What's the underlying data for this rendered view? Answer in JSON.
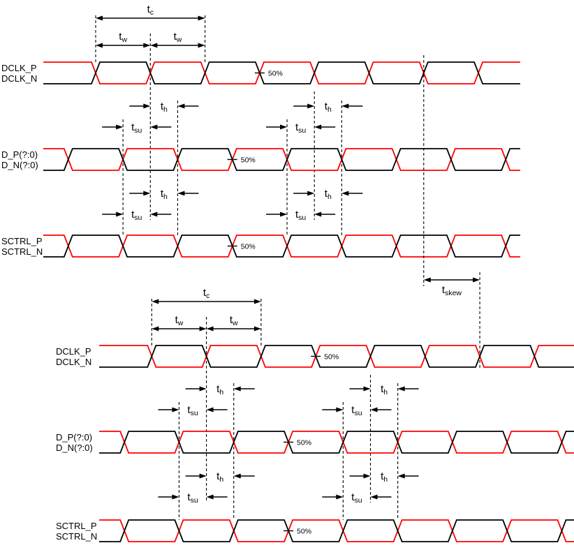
{
  "figure": {
    "background": "#ffffff",
    "colors": {
      "positive_line": "#ff0000",
      "negative_line": "#000000",
      "annotation": "#000000"
    },
    "reference_level_label": "50%",
    "timing_labels": {
      "tc": {
        "base": "t",
        "sub": "c"
      },
      "tw": {
        "base": "t",
        "sub": "w"
      },
      "th": {
        "base": "t",
        "sub": "h"
      },
      "tsu": {
        "base": "t",
        "sub": "su"
      },
      "tskew": {
        "base": "t",
        "sub": "skew"
      }
    },
    "diagrams": [
      {
        "id": "group-1",
        "signals": [
          {
            "id": "dclk",
            "role": "clock",
            "p_label": "DCLK_P",
            "n_label": "DCLK_N"
          },
          {
            "id": "d-bus",
            "role": "data",
            "p_label": "D_P(?:0)",
            "n_label": "D_N(?:0)"
          },
          {
            "id": "sctrl",
            "role": "data",
            "p_label": "SCTRL_P",
            "n_label": "SCTRL_N"
          }
        ],
        "measurements": [
          "tc",
          "tw",
          "tw",
          "tsu",
          "th",
          "tsu",
          "th",
          "tsu",
          "th",
          "tsu",
          "th"
        ],
        "reference_markers": [
          "50%",
          "50%",
          "50%"
        ]
      },
      {
        "id": "group-2",
        "signals": [
          {
            "id": "dclk",
            "role": "clock",
            "p_label": "DCLK_P",
            "n_label": "DCLK_N"
          },
          {
            "id": "d-bus",
            "role": "data",
            "p_label": "D_P(?:0)",
            "n_label": "D_N(?:0)"
          },
          {
            "id": "sctrl",
            "role": "data",
            "p_label": "SCTRL_P",
            "n_label": "SCTRL_N"
          }
        ],
        "measurements": [
          "tc",
          "tw",
          "tw",
          "tsu",
          "th",
          "tsu",
          "th",
          "tsu",
          "th",
          "tsu",
          "th"
        ],
        "reference_markers": [
          "50%",
          "50%",
          "50%"
        ]
      }
    ],
    "skew_measurement": {
      "label": "tskew",
      "from": "group-1-dclk-edge",
      "to": "group-2-dclk-edge"
    }
  }
}
